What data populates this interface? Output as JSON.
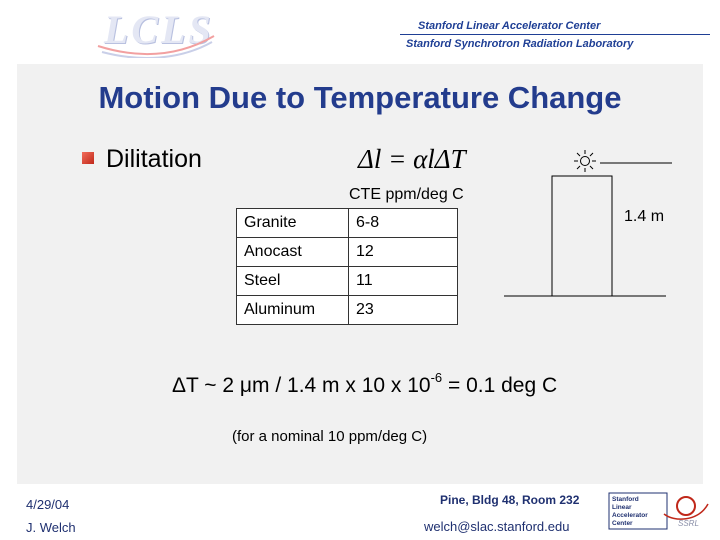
{
  "header": {
    "logo_text": "LCLS",
    "org_line1": "Stanford Linear Accelerator Center",
    "org_line2": "Stanford Synchrotron Radiation Laboratory"
  },
  "slide": {
    "title": "Motion Due to Temperature Change",
    "bullet": "Dilitation",
    "formula": "Δl = αlΔT",
    "table": {
      "heading": "CTE ppm/deg C",
      "rows": [
        {
          "material": "Granite",
          "cte": "6-8"
        },
        {
          "material": "Anocast",
          "cte": "12"
        },
        {
          "material": "Steel",
          "cte": "11"
        },
        {
          "material": "Aluminum",
          "cte": "23"
        }
      ]
    },
    "diagram": {
      "height_label": "1.4 m",
      "sun_icon": "sun-icon"
    },
    "equation": {
      "main": "ΔT ~ 2 μm / 1.4 m x 10 x 10",
      "exponent": "-6",
      "result": " = 0.1 deg C"
    },
    "note": "(for a nominal 10 ppm/deg C)"
  },
  "footer": {
    "date": "4/29/04",
    "author": "J. Welch",
    "location": "Pine, Bldg 48, Room 232",
    "email": "welch@slac.stanford.edu",
    "logo_lines": [
      "Stanford",
      "Linear",
      "Accelerator",
      "Center"
    ],
    "logo_badge": "SSRL"
  },
  "colors": {
    "title": "#233c8d",
    "footer_text": "#1f3070",
    "bullet": "#c0281a"
  }
}
